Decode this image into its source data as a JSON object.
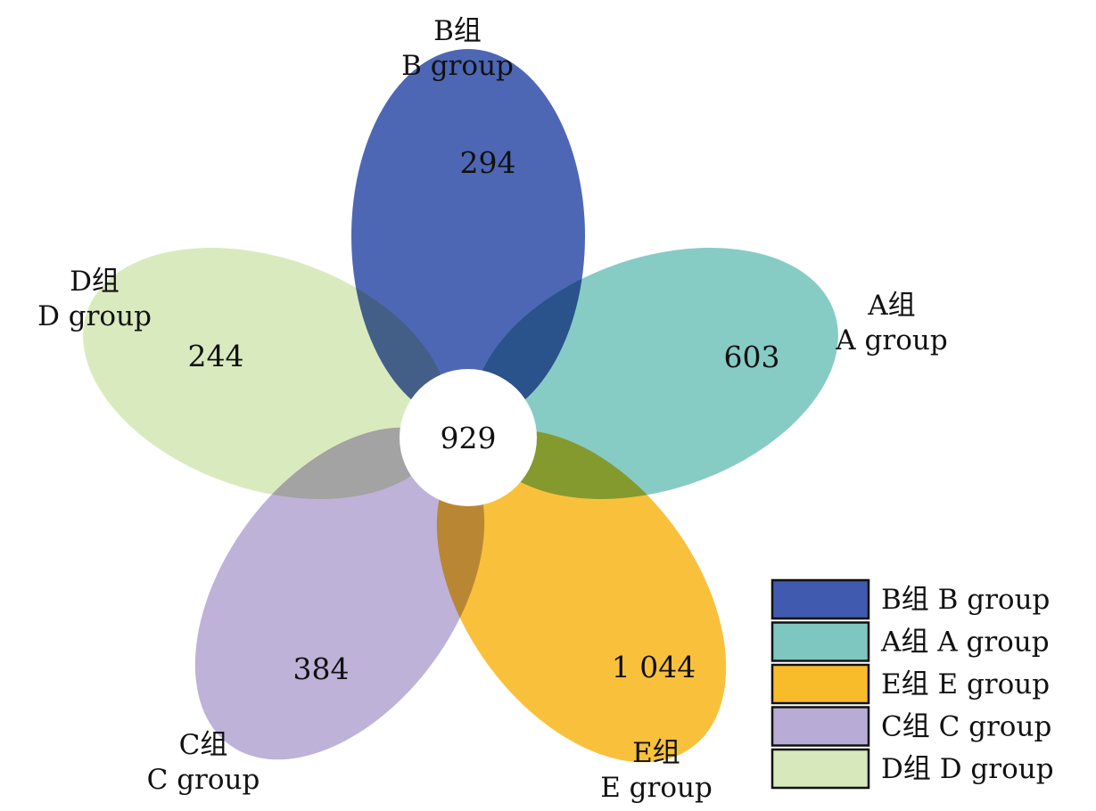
{
  "center_value": "929",
  "groups": [
    {
      "key": "B",
      "label_cn": "B组",
      "label_en": "B group",
      "value": "294",
      "color": "#3F5AAE"
    },
    {
      "key": "A",
      "label_cn": "A组",
      "label_en": "A group",
      "value": "603",
      "color": "#7DC7C0"
    },
    {
      "key": "E",
      "label_cn": "E组",
      "label_en": "E group",
      "value": "1 044",
      "color": "#F8BC2A"
    },
    {
      "key": "C",
      "label_cn": "C组",
      "label_en": "C group",
      "value": "384",
      "color": "#B8ABD6"
    },
    {
      "key": "D",
      "label_cn": "D组",
      "label_en": "D group",
      "value": "244",
      "color": "#D7E8BA"
    }
  ],
  "legend": [
    {
      "key": "B",
      "label": "B组 B group",
      "color": "#3F5AAE"
    },
    {
      "key": "A",
      "label": "A组 A group",
      "color": "#7DC7C0"
    },
    {
      "key": "E",
      "label": "E组 E group",
      "color": "#F8BC2A"
    },
    {
      "key": "C",
      "label": "C组 C group",
      "color": "#B8ABD6"
    },
    {
      "key": "D",
      "label": "D组 D group",
      "color": "#D7E8BA"
    }
  ]
}
